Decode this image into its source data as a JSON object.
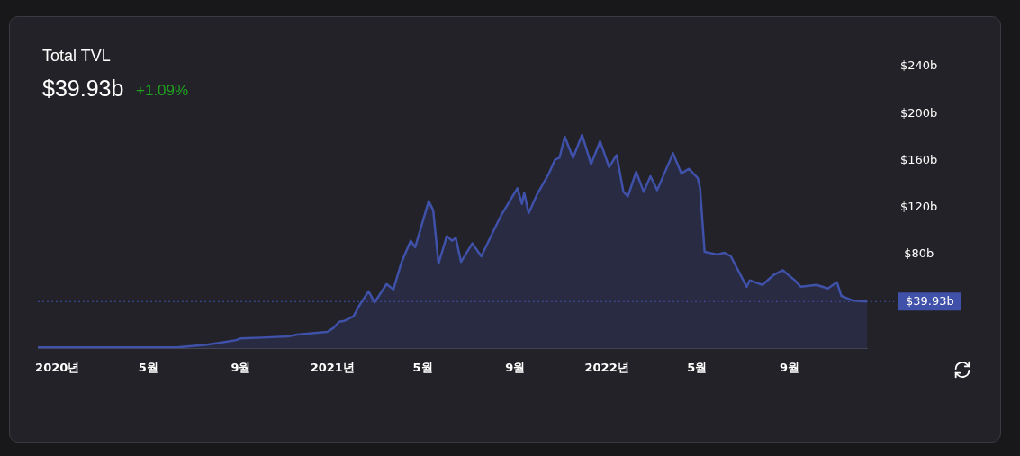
{
  "chart_data": {
    "type": "area",
    "title": "Total TVL",
    "subtitle": "$39.93b",
    "annotations": [
      "+1.09%"
    ],
    "x": [
      "2019-12-06",
      "2020-06-08",
      "2020-07-18",
      "2020-08-26",
      "2020-09-01",
      "2020-10-06",
      "2020-11-03",
      "2020-11-15",
      "2020-12-25",
      "2021-01-02",
      "2021-01-10",
      "2021-01-17",
      "2021-01-29",
      "2021-02-06",
      "2021-02-18",
      "2021-02-26",
      "2021-03-14",
      "2021-03-23",
      "2021-04-03",
      "2021-04-15",
      "2021-04-21",
      "2021-05-09",
      "2021-05-15",
      "2021-05-22",
      "2021-06-02",
      "2021-06-09",
      "2021-06-14",
      "2021-06-21",
      "2021-07-06",
      "2021-07-18",
      "2021-08-01",
      "2021-08-13",
      "2021-09-04",
      "2021-09-10",
      "2021-09-13",
      "2021-09-19",
      "2021-09-30",
      "2021-10-16",
      "2021-10-24",
      "2021-10-30",
      "2021-11-06",
      "2021-11-17",
      "2021-11-29",
      "2021-12-11",
      "2021-12-23",
      "2022-01-04",
      "2022-01-14",
      "2022-01-23",
      "2022-01-29",
      "2022-02-09",
      "2022-02-19",
      "2022-02-28",
      "2022-03-09",
      "2022-03-30",
      "2022-04-10",
      "2022-04-20",
      "2022-05-02",
      "2022-05-05",
      "2022-05-11",
      "2022-05-28",
      "2022-06-06",
      "2022-06-15",
      "2022-07-06",
      "2022-07-10",
      "2022-07-27",
      "2022-08-11",
      "2022-08-23",
      "2022-09-08",
      "2022-09-16",
      "2022-10-07",
      "2022-10-22",
      "2022-11-03",
      "2022-11-09",
      "2022-11-24",
      "2022-12-13"
    ],
    "series": [
      {
        "color": "#3f51a8",
        "values": [
          0.8,
          0.8,
          3.1,
          7.1,
          8.6,
          9.4,
          10.2,
          11.8,
          14.1,
          17.2,
          22.7,
          23.5,
          27.4,
          36.9,
          48.6,
          39.2,
          54.9,
          50.2,
          73.7,
          91.7,
          86.2,
          125.4,
          117.6,
          72.1,
          95.6,
          91.7,
          94.1,
          73.7,
          89.4,
          78.4,
          97.2,
          112.9,
          136.4,
          123.1,
          132.5,
          115.2,
          130.9,
          149,
          160.7,
          162.3,
          180.3,
          162.3,
          181.9,
          156.8,
          176.4,
          154.4,
          164.6,
          133.3,
          129.4,
          150.5,
          133.3,
          146.6,
          134.8,
          166.2,
          149,
          152.9,
          145,
          136.4,
          82.3,
          80,
          81.5,
          78.4,
          52.5,
          58,
          54.1,
          62.7,
          66.6,
          58,
          52.5,
          54.1,
          51,
          56.4,
          44.7,
          40.8,
          40
        ]
      }
    ],
    "xticks": [
      {
        "value": "2020-01-01",
        "label": "2020년"
      },
      {
        "value": "2020-05-01",
        "label": "5월"
      },
      {
        "value": "2020-09-01",
        "label": "9월"
      },
      {
        "value": "2021-01-01",
        "label": "2021년"
      },
      {
        "value": "2021-05-01",
        "label": "5월"
      },
      {
        "value": "2021-09-01",
        "label": "9월"
      },
      {
        "value": "2022-01-01",
        "label": "2022년"
      },
      {
        "value": "2022-05-01",
        "label": "5월"
      },
      {
        "value": "2022-09-01",
        "label": "9월"
      }
    ],
    "xlim": [
      "2019-12-06",
      "2022-12-13"
    ],
    "ylim": [
      0,
      240
    ],
    "yticks": [
      {
        "value": 80,
        "label": "$80b"
      },
      {
        "value": 120,
        "label": "$120b"
      },
      {
        "value": 160,
        "label": "$160b"
      },
      {
        "value": 200,
        "label": "$200b"
      },
      {
        "value": 240,
        "label": "$240b"
      }
    ],
    "ref_lines": [
      {
        "axis": "y",
        "value": 39.93,
        "label": "$39.93b",
        "color": "#3f51a8",
        "line_style": "dotted"
      }
    ],
    "grid": false,
    "legend": false
  }
}
